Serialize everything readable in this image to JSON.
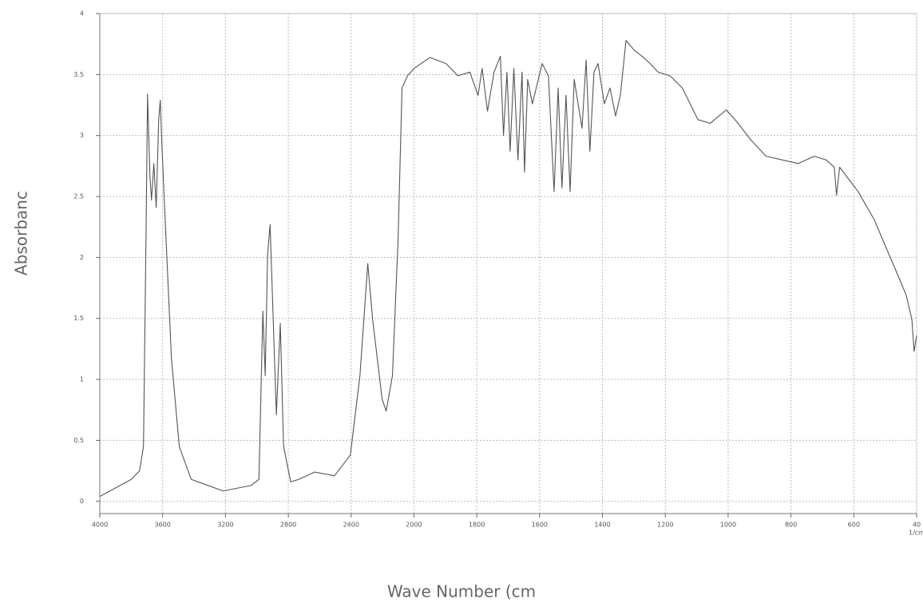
{
  "chart_data": {
    "type": "line",
    "y_label": "Absorbanc",
    "x_label": "Wave Number (cm",
    "x_unit_label": "1/cm",
    "xlim": [
      4000,
      400
    ],
    "xticks": [
      4000,
      3600,
      3200,
      2800,
      2400,
      2000,
      1800,
      1600,
      1400,
      1200,
      1000,
      800,
      600,
      {
        "value": 400,
        "label": "40"
      }
    ],
    "ylim": [
      -0.1,
      4
    ],
    "yticks": [
      0,
      0.5,
      1,
      1.5,
      2,
      2.5,
      3,
      3.5,
      4
    ],
    "grid": true,
    "series": [
      {
        "color": "#555555",
        "x": [
          4000,
          3800,
          3747,
          3722,
          3706,
          3696,
          3681,
          3671,
          3656,
          3641,
          3625,
          3615,
          3605,
          3585,
          3544,
          3494,
          3418,
          3215,
          3038,
          2987,
          2962,
          2947,
          2932,
          2916,
          2896,
          2876,
          2851,
          2830,
          2785,
          2734,
          2633,
          2506,
          2405,
          2344,
          2294,
          2263,
          2203,
          2177,
          2137,
          2101,
          2076,
          2041,
          2000,
          1949,
          1898,
          1860,
          1822,
          1796,
          1783,
          1766,
          1745,
          1725,
          1715,
          1704,
          1694,
          1682,
          1669,
          1656,
          1648,
          1638,
          1623,
          1592,
          1572,
          1554,
          1541,
          1529,
          1516,
          1503,
          1490,
          1465,
          1452,
          1440,
          1427,
          1414,
          1394,
          1376,
          1358,
          1343,
          1325,
          1299,
          1274,
          1248,
          1223,
          1185,
          1146,
          1096,
          1057,
          1006,
          968,
          930,
          879,
          828,
          777,
          726,
          688,
          662,
          655,
          645,
          586,
          535,
          497,
          459,
          433,
          415,
          408,
          400
        ],
        "values": [
          0.04,
          0.18,
          0.25,
          0.45,
          2.15,
          3.34,
          2.67,
          2.47,
          2.77,
          2.41,
          3.13,
          3.29,
          2.93,
          2.34,
          1.17,
          0.45,
          0.18,
          0.085,
          0.13,
          0.18,
          1.56,
          1.03,
          2.02,
          2.27,
          1.49,
          0.71,
          1.46,
          0.45,
          0.16,
          0.18,
          0.24,
          0.21,
          0.38,
          1.03,
          1.95,
          1.49,
          0.84,
          0.74,
          1.03,
          2.15,
          3.39,
          3.49,
          3.55,
          3.64,
          3.59,
          3.49,
          3.52,
          3.33,
          3.55,
          3.2,
          3.52,
          3.65,
          3.0,
          3.52,
          2.87,
          3.55,
          2.8,
          3.52,
          2.7,
          3.46,
          3.26,
          3.59,
          3.49,
          2.54,
          3.39,
          2.57,
          3.33,
          2.54,
          3.46,
          3.06,
          3.62,
          2.87,
          3.52,
          3.59,
          3.26,
          3.39,
          3.16,
          3.33,
          3.78,
          3.7,
          3.65,
          3.59,
          3.52,
          3.49,
          3.39,
          3.13,
          3.1,
          3.21,
          3.1,
          2.97,
          2.83,
          2.8,
          2.77,
          2.83,
          2.8,
          2.74,
          2.51,
          2.74,
          2.54,
          2.31,
          2.08,
          1.85,
          1.69,
          1.49,
          1.23,
          1.36
        ]
      }
    ]
  }
}
